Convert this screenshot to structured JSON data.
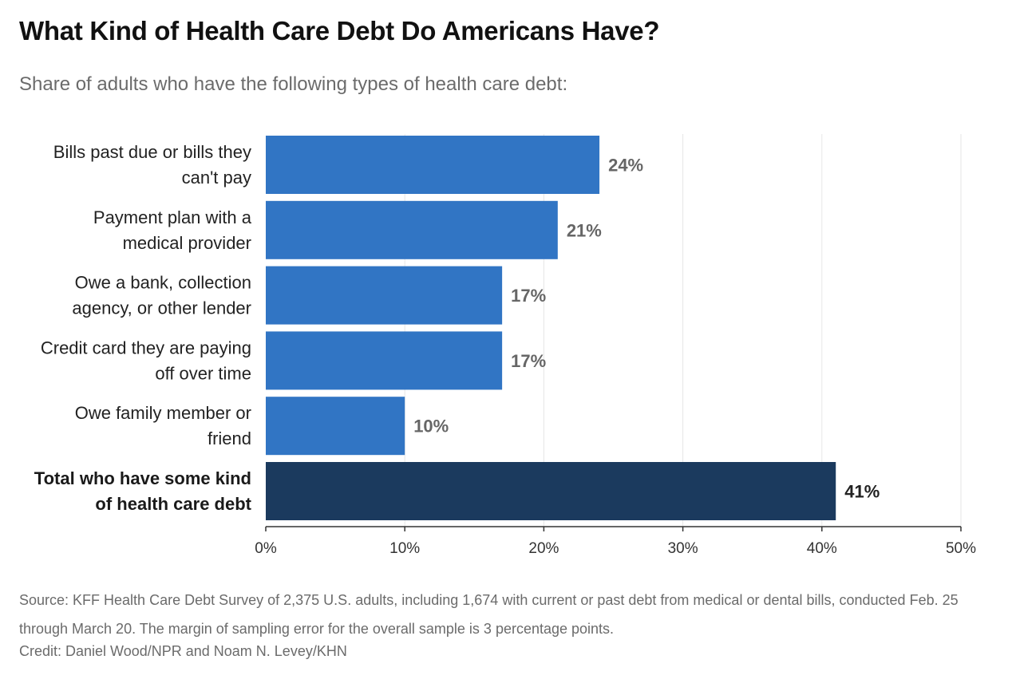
{
  "title": "What Kind of Health Care Debt Do Americans Have?",
  "subtitle": "Share of adults who have the following types of health care debt:",
  "source": "Source: KFF Health Care Debt Survey of 2,375 U.S. adults, including 1,674 with current or past debt from medical or dental bills, conducted Feb. 25 through March 20. The margin of sampling error for the overall sample is 3 percentage points.",
  "credit": "Credit: Daniel Wood/NPR and Noam N. Levey/KHN",
  "colors": {
    "bar": "#3175c4",
    "total_bar": "#1b3a5e",
    "grid": "#e6e6e6",
    "axis": "#333333",
    "value_label": "#666666",
    "total_value_label": "#222222"
  },
  "chart_data": {
    "type": "bar",
    "orientation": "horizontal",
    "categories": [
      [
        "Bills past due or bills they",
        "can't pay"
      ],
      [
        "Payment plan with a",
        "medical provider"
      ],
      [
        "Owe a bank, collection",
        "agency, or other lender"
      ],
      [
        "Credit card they are paying",
        "off over time"
      ],
      [
        "Owe family member or",
        "friend"
      ],
      [
        "Total who have some kind",
        "of health care debt"
      ]
    ],
    "values": [
      24,
      21,
      17,
      17,
      10,
      41
    ],
    "value_labels": [
      "24%",
      "21%",
      "17%",
      "17%",
      "10%",
      "41%"
    ],
    "highlight_index": 5,
    "xlim": [
      0,
      50
    ],
    "xticks": [
      0,
      10,
      20,
      30,
      40,
      50
    ],
    "xtick_labels": [
      "0%",
      "10%",
      "20%",
      "30%",
      "40%",
      "50%"
    ],
    "grid": true,
    "xlabel": "",
    "ylabel": ""
  }
}
